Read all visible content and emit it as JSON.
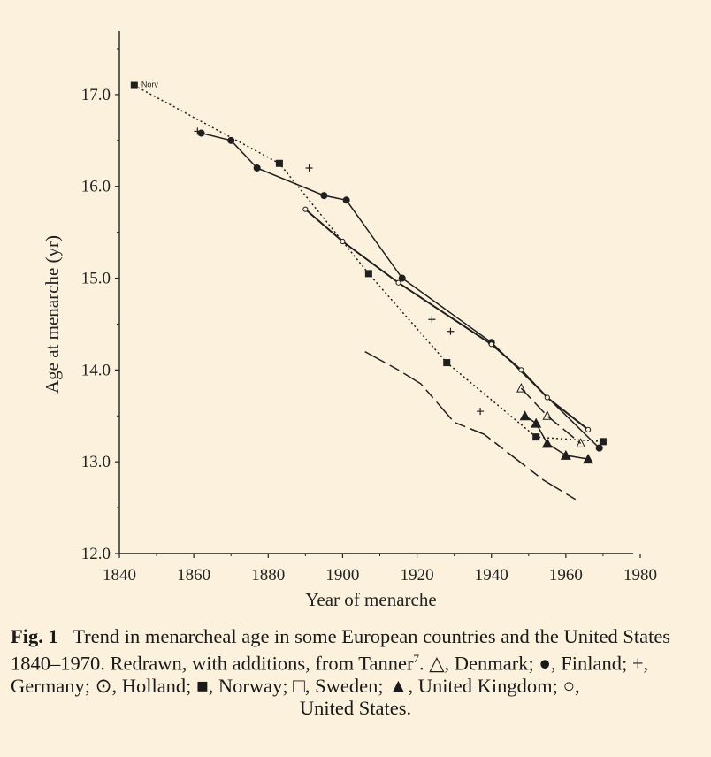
{
  "chart_data": {
    "type": "line",
    "xlabel": "Year of menarche",
    "ylabel": "Age at menarche (yr)",
    "xlim": [
      1840,
      1980
    ],
    "ylim": [
      12.0,
      17.5
    ],
    "xticks": [
      "1840",
      "1860",
      "1880",
      "1900",
      "1920",
      "1940",
      "1960",
      "1980"
    ],
    "yticks": [
      "12.0",
      "13.0",
      "14.0",
      "15.0",
      "16.0",
      "17.0"
    ],
    "annotation": "Norv",
    "series": [
      {
        "marker": "square",
        "line": "dotted",
        "points": [
          [
            1844,
            17.1
          ],
          [
            1883,
            16.25
          ],
          [
            1907,
            15.05
          ],
          [
            1928,
            14.08
          ],
          [
            1952,
            13.27
          ],
          [
            1970,
            13.22
          ]
        ]
      },
      {
        "marker": "circle",
        "line": "solid",
        "points": [
          [
            1862,
            16.58
          ],
          [
            1870,
            16.5
          ],
          [
            1877,
            16.2
          ],
          [
            1895,
            15.9
          ],
          [
            1901,
            15.85
          ],
          [
            1916,
            15.0
          ],
          [
            1940,
            14.3
          ],
          [
            1969,
            13.15
          ]
        ]
      },
      {
        "marker": "plus",
        "line": "none",
        "points": [
          [
            1861,
            16.6
          ],
          [
            1891,
            16.2
          ],
          [
            1924,
            14.55
          ],
          [
            1929,
            14.42
          ],
          [
            1937,
            13.55
          ]
        ]
      },
      {
        "marker": "triangle",
        "line": "solid",
        "points": [
          [
            1949,
            13.5
          ],
          [
            1952,
            13.42
          ],
          [
            1955,
            13.2
          ],
          [
            1960,
            13.07
          ],
          [
            1966,
            13.03
          ]
        ]
      },
      {
        "marker": "triangle-open",
        "line": "dashed",
        "points": [
          [
            1948,
            13.8
          ],
          [
            1955,
            13.5
          ],
          [
            1964,
            13.2
          ]
        ]
      },
      {
        "marker": "circle-open",
        "line": "solid",
        "points": [
          [
            1890,
            15.75
          ],
          [
            1900,
            15.4
          ],
          [
            1915,
            14.95
          ],
          [
            1940,
            14.28
          ],
          [
            1948,
            14.0
          ],
          [
            1955,
            13.7
          ],
          [
            1966,
            13.35
          ]
        ]
      },
      {
        "marker": "none",
        "line": "longdash",
        "points": [
          [
            1906,
            14.2
          ],
          [
            1915,
            14.0
          ],
          [
            1921,
            13.85
          ],
          [
            1930,
            13.43
          ],
          [
            1938,
            13.3
          ],
          [
            1954,
            12.8
          ],
          [
            1963,
            12.58
          ]
        ]
      }
    ]
  },
  "caption": {
    "label": "Fig. 1",
    "text": "Trend in menarcheal age in some European countries and the United States 1840–1970. Redrawn, with additions, from Tanner",
    "ref": "7",
    "legend_text": ". △, Denmark; ●, Finland; +, Germany; ⊙, Holland; ■, Norway; □, Sweden; ▲, United Kingdom; ○,",
    "last_line": "United States."
  }
}
